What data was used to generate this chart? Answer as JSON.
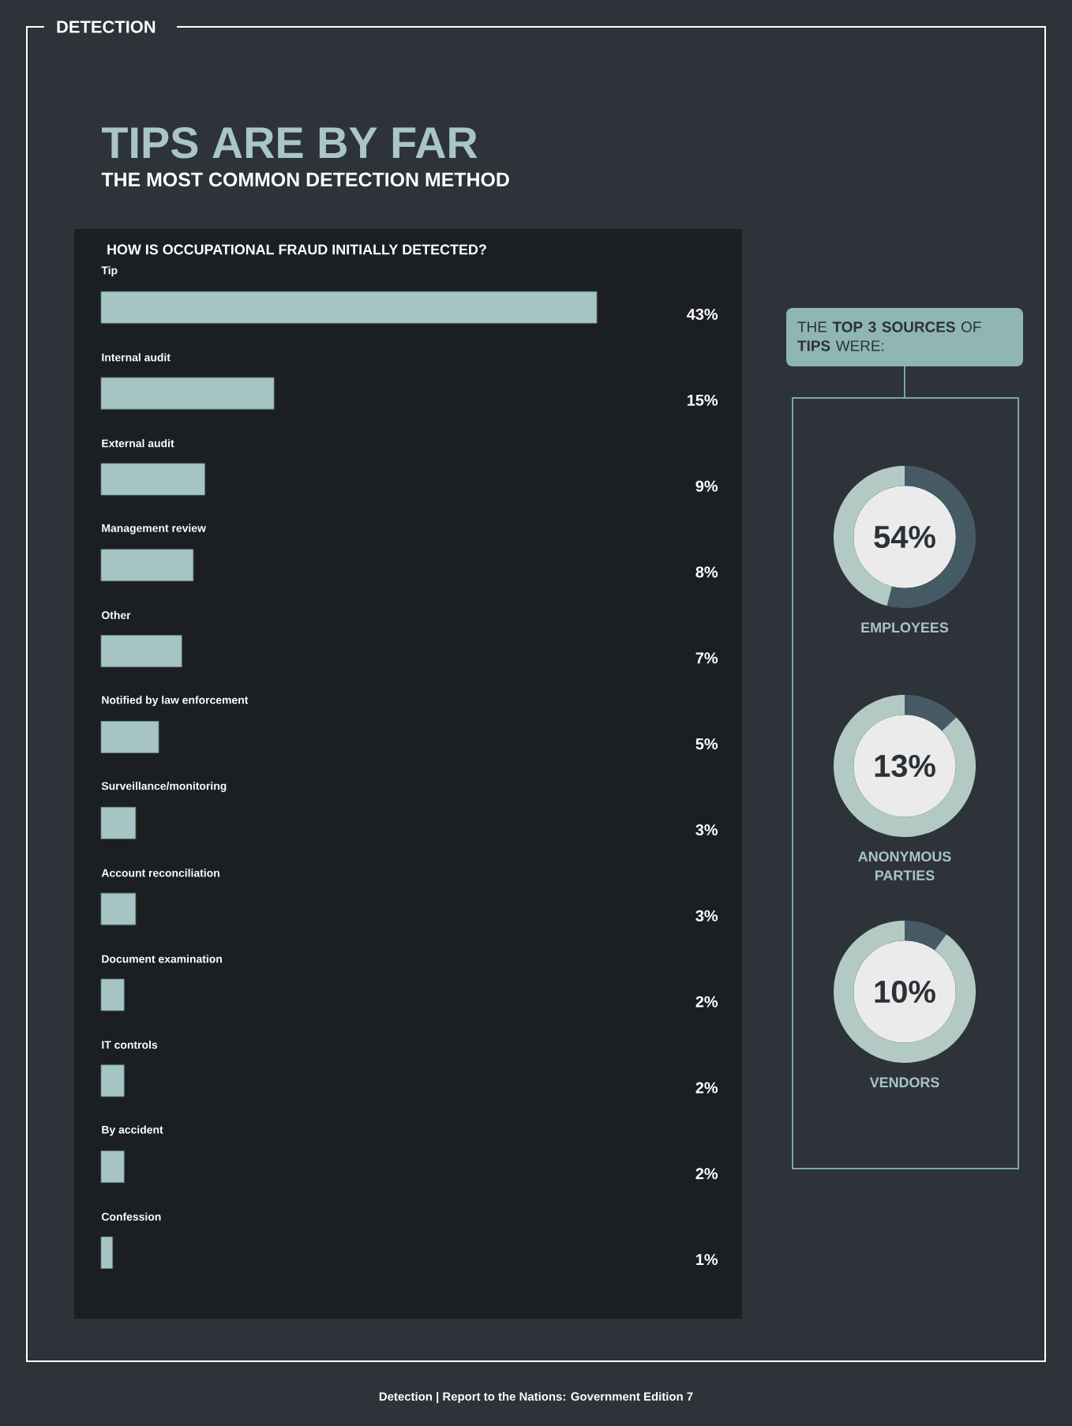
{
  "chart_data": [
    {
      "type": "bar",
      "orientation": "horizontal",
      "title": "TIPS ARE BY FAR",
      "subtitle": "THE MOST COMMON DETECTION METHOD",
      "annotations": [
        "DETECTION",
        "HOW IS OCCUPATIONAL FRAUD INITIALLY DETECTED?",
        "Detection | Report to the Nations: Government Edition 7"
      ],
      "categories": [
        "Tip",
        "Internal audit",
        "External audit",
        "Management review",
        "Other",
        "Notified by law enforcement",
        "Surveillance/monitoring",
        "Account reconciliation",
        "Document examination",
        "IT controls",
        "By accident",
        "Confession"
      ],
      "values": [
        43,
        15,
        9,
        8,
        7,
        5,
        3,
        3,
        2,
        2,
        2,
        1
      ],
      "value_labels": [
        "43%",
        "15%",
        "9%",
        "8%",
        "7%",
        "5%",
        "3%",
        "3%",
        "2%",
        "2%",
        "2%",
        "1%"
      ],
      "color": "#a6c4c3"
    },
    {
      "type": "donut",
      "title": "THE **TOP 3 SOURCES** OF **TIPS** WERE:",
      "categories": [
        null,
        null
      ],
      "values": [
        54,
        46
      ],
      "annotations": [
        "54%",
        "EMPLOYEES"
      ],
      "colors": [
        "#465a66",
        "#b3c9c4"
      ]
    },
    {
      "type": "donut",
      "categories": [
        null,
        null
      ],
      "values": [
        13,
        87
      ],
      "annotations": [
        "13%",
        "ANONYMOUS PARTIES"
      ],
      "colors": [
        "#465a66",
        "#b3c9c4"
      ]
    },
    {
      "type": "donut",
      "categories": [
        null,
        null
      ],
      "values": [
        10,
        90
      ],
      "annotations": [
        "10%",
        "VENDORS"
      ],
      "colors": [
        "#465a66",
        "#b3c9c4"
      ]
    }
  ]
}
